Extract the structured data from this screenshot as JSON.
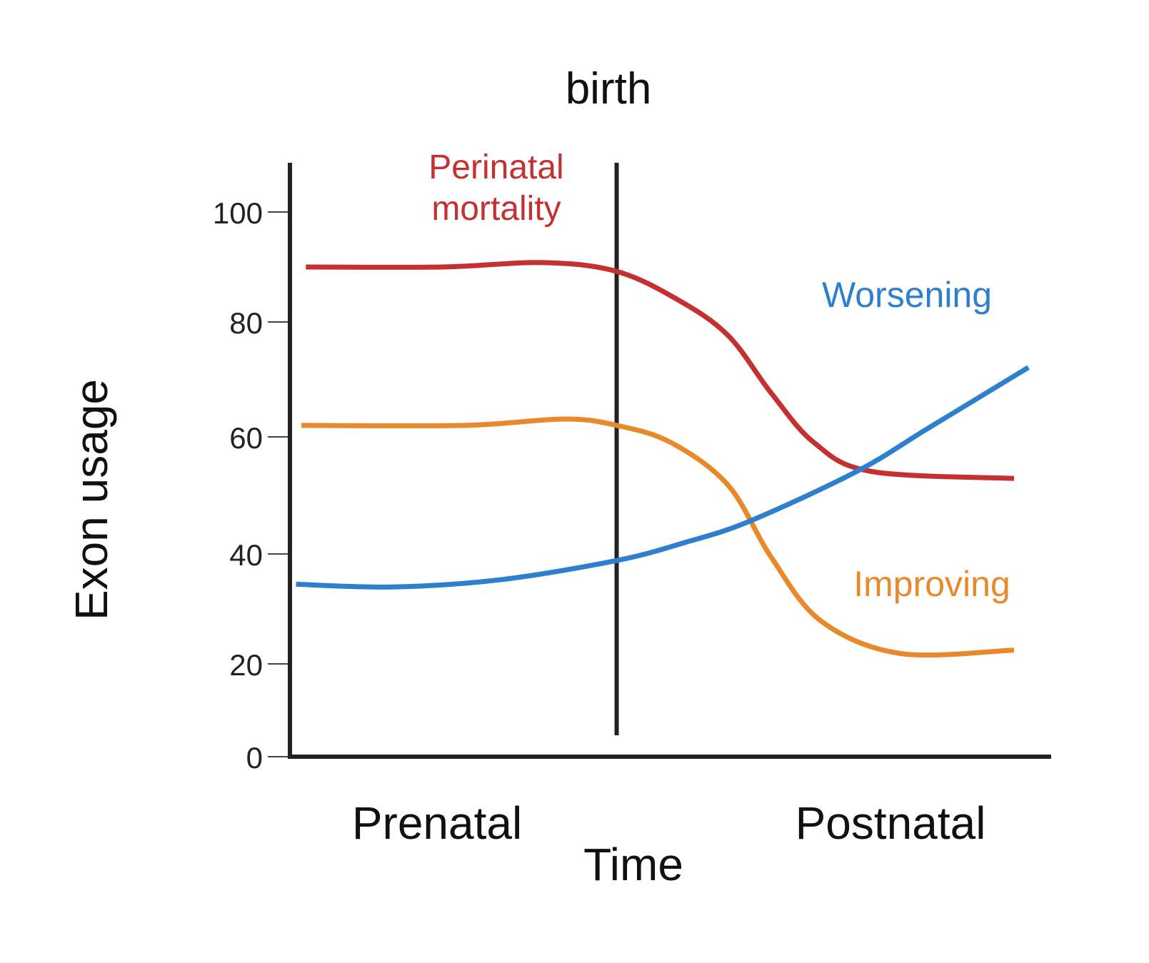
{
  "chart_data": {
    "type": "line",
    "title": "",
    "xlabel": "Time",
    "ylabel": "Exon usage",
    "ylim": [
      0,
      100
    ],
    "xlim": [
      0,
      100
    ],
    "yticks": [
      "0",
      "20",
      "40",
      "60",
      "80",
      "100"
    ],
    "x_category_labels": [
      "Prenatal",
      "Postnatal"
    ],
    "grid": false,
    "legend": "inline labels",
    "annotations": {
      "birth_label": "birth",
      "birth_x": 43
    },
    "series": [
      {
        "name": "Perinatal mortality",
        "label_lines": [
          "Perinatal",
          "mortality"
        ],
        "color": "#c53030",
        "x": [
          2.1,
          20.1,
          33.3,
          43,
          51.1,
          57.7,
          63.3,
          69,
          76.5,
          95.3
        ],
        "y": [
          90,
          90,
          90.8,
          89.2,
          84,
          77.6,
          67.7,
          59,
          54.1,
          52.9
        ]
      },
      {
        "name": "Improving",
        "label_lines": [
          "Improving"
        ],
        "color": "#e8892b",
        "x": [
          1.5,
          22.9,
          36.1,
          43,
          50.2,
          57.7,
          63.3,
          69.9,
          80.3,
          95.3
        ],
        "y": [
          62,
          62,
          63.1,
          62,
          59,
          51.7,
          39.5,
          27.8,
          21.9,
          22.5
        ]
      },
      {
        "name": "Worsening",
        "label_lines": [
          "Worsening"
        ],
        "color": "#2f7fcf",
        "x": [
          0.8,
          13.5,
          27.6,
          43,
          52.1,
          60.5,
          74.6,
          84,
          97.2
        ],
        "y": [
          34.5,
          34,
          35.3,
          38.8,
          42,
          45.6,
          54.1,
          61.5,
          72.1
        ]
      }
    ]
  }
}
